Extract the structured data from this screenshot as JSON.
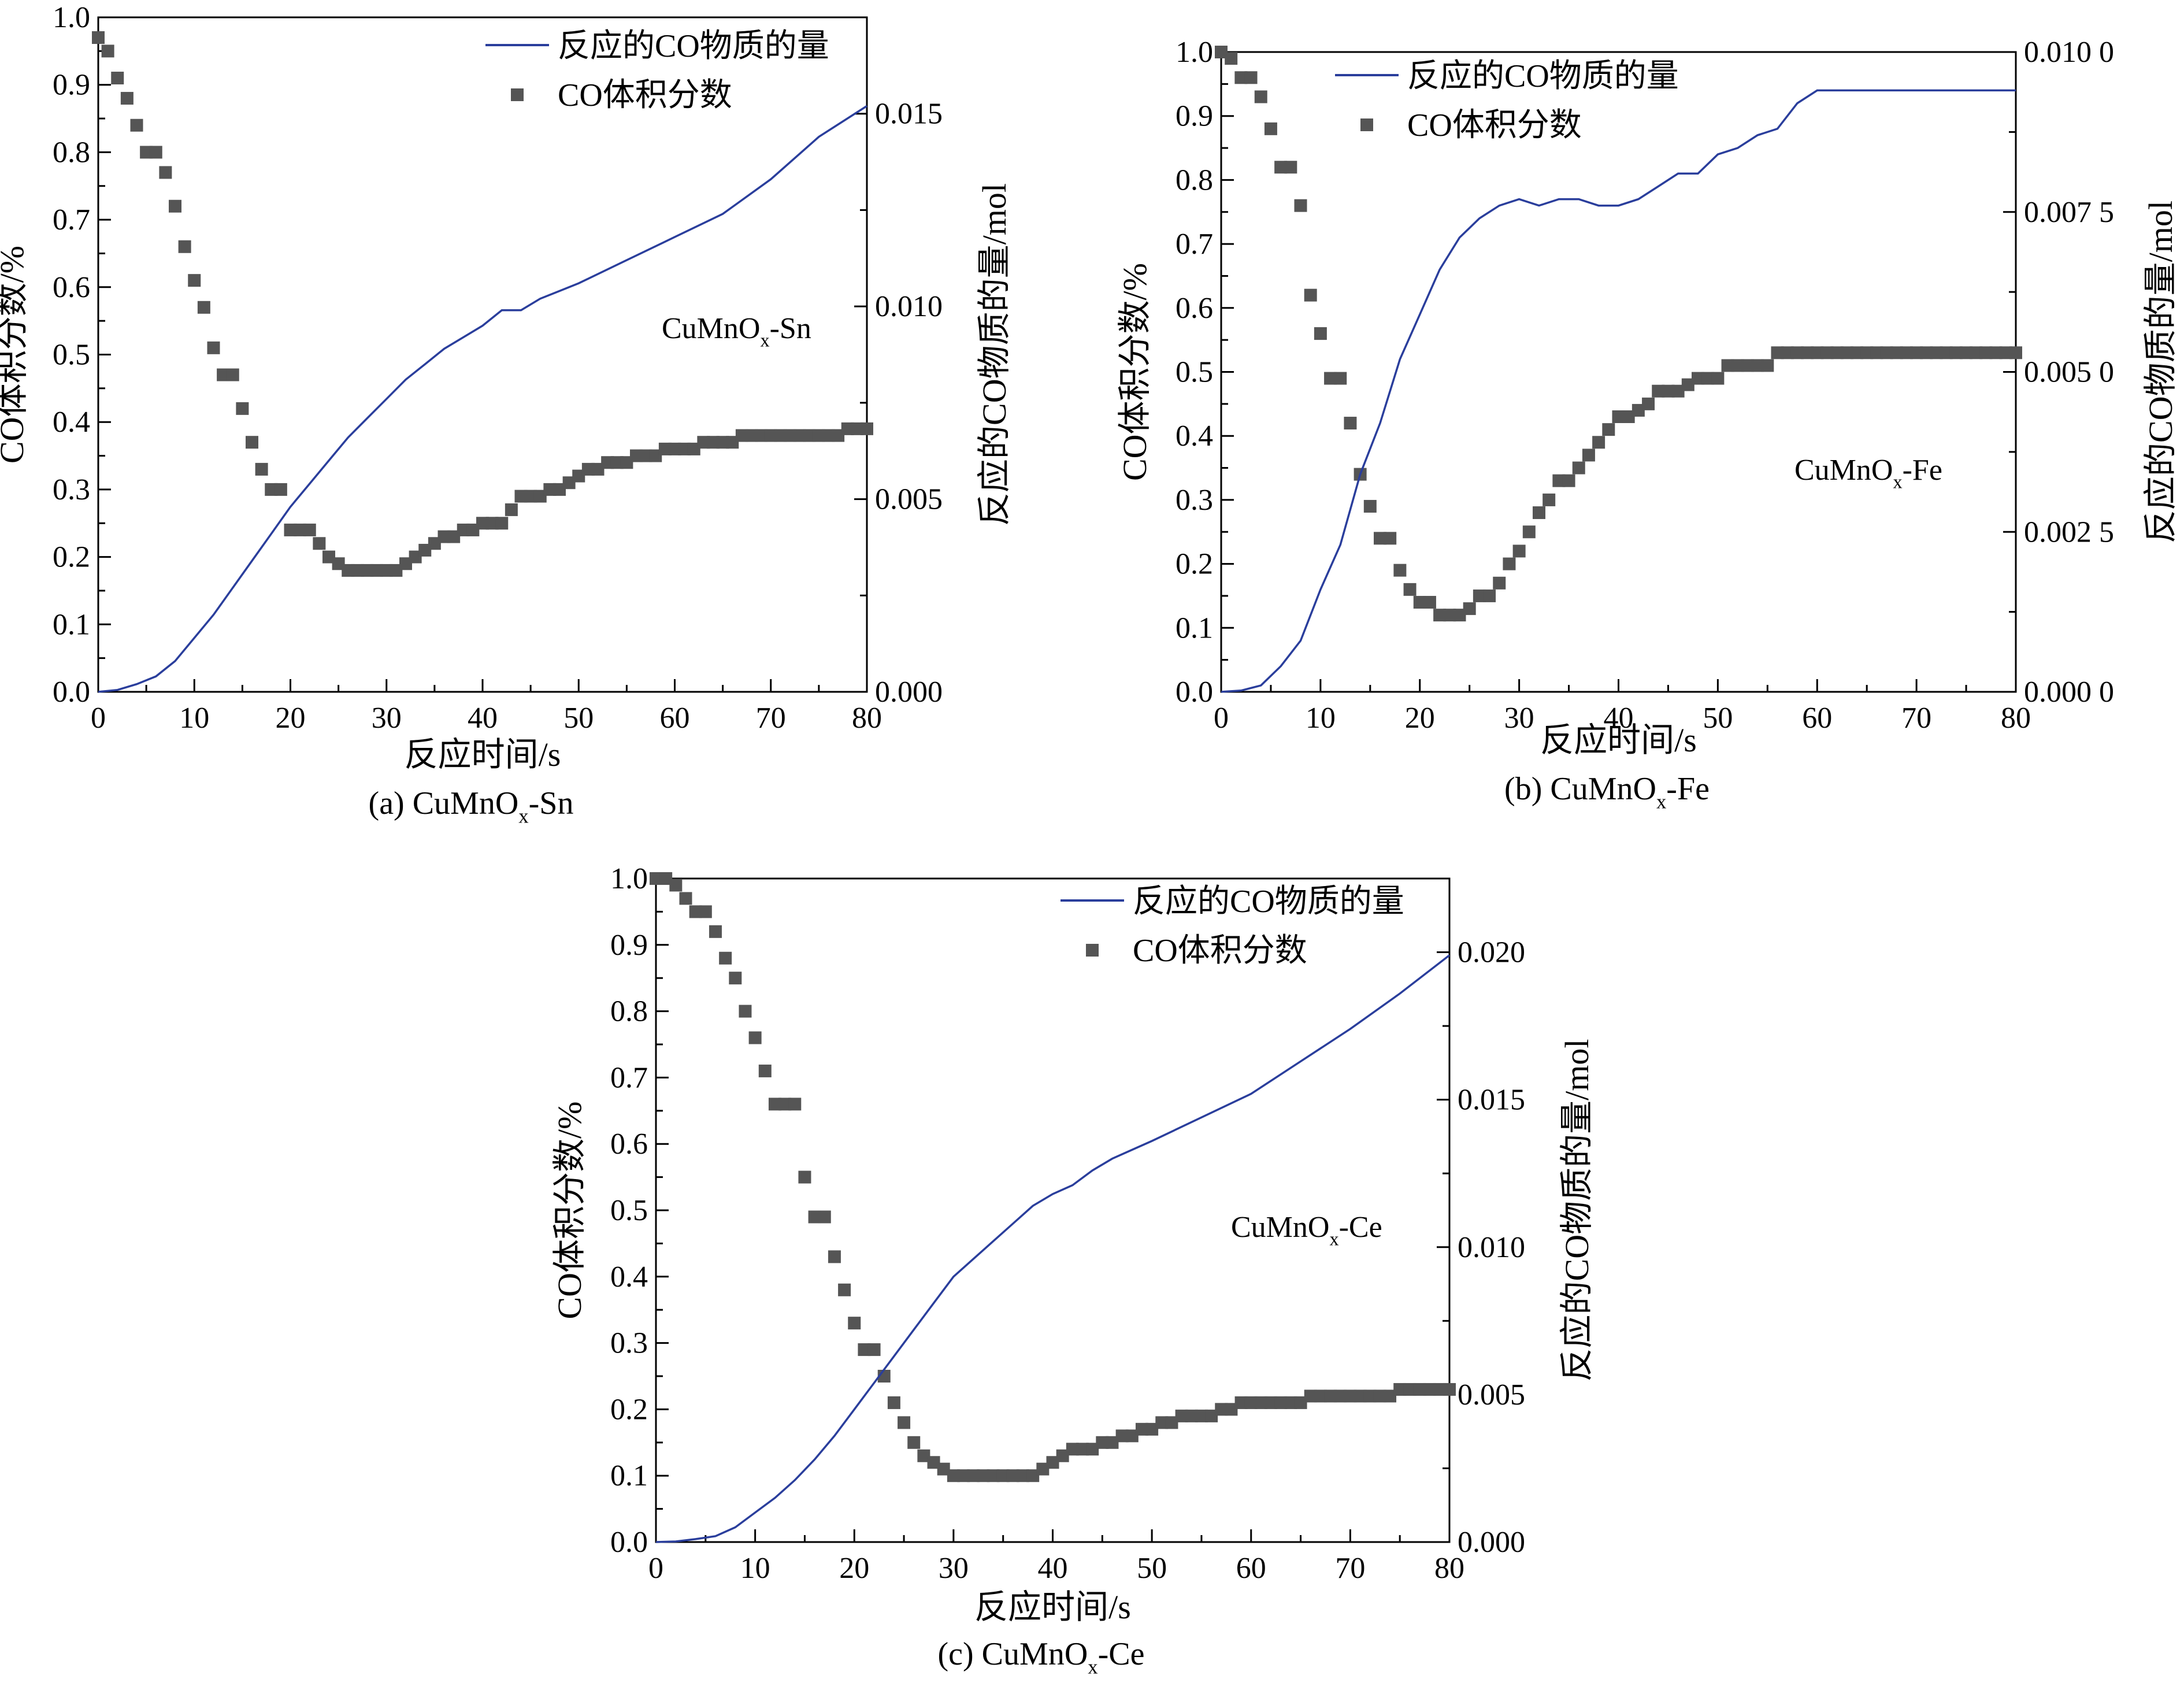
{
  "colors": {
    "line": "#2a3e9c",
    "marker": "#555555",
    "axis": "#000000"
  },
  "legend": {
    "line_label": "反应的CO物质的量",
    "marker_label": "CO体积分数"
  },
  "chart_data": [
    {
      "type": "line+scatter",
      "caption_prefix": "(a) CuMnO",
      "caption_sub": "x",
      "caption_suffix": "-Sn",
      "annotation_prefix": "CuMnO",
      "annotation_sub": "x",
      "annotation_suffix": "-Sn",
      "xlabel": "反应时间/s",
      "ylabel_left": "CO体积分数/%",
      "ylabel_right": "反应的CO物质的量/mol",
      "xlim": [
        0,
        80
      ],
      "ylim_left": [
        0,
        1.0
      ],
      "ylim_right": [
        0,
        0.0175
      ],
      "xticks": [
        0,
        10,
        20,
        30,
        40,
        50,
        60,
        70,
        80
      ],
      "xtick_labels": [
        "0",
        "10",
        "20",
        "30",
        "40",
        "50",
        "60",
        "70",
        "80"
      ],
      "yticks_left": [
        0,
        0.1,
        0.2,
        0.3,
        0.4,
        0.5,
        0.6,
        0.7,
        0.8,
        0.9,
        1.0
      ],
      "ytick_labels_left": [
        "0.0",
        "0.1",
        "0.2",
        "0.3",
        "0.4",
        "0.5",
        "0.6",
        "0.7",
        "0.8",
        "0.9",
        "1.0"
      ],
      "yticks_right": [
        0,
        0.005,
        0.01,
        0.015
      ],
      "ytick_labels_right": [
        "0.000",
        "0.005",
        "0.010",
        "0.015"
      ],
      "line_series": {
        "x": [
          0,
          2,
          4,
          6,
          8,
          10,
          12,
          14,
          16,
          18,
          20,
          22,
          24,
          26,
          28,
          30,
          32,
          34,
          36,
          38,
          40,
          42,
          44,
          46,
          48,
          50,
          55,
          60,
          65,
          70,
          75,
          80
        ],
        "y": [
          0,
          5e-05,
          0.0002,
          0.0004,
          0.0008,
          0.0014,
          0.002,
          0.0027,
          0.0034,
          0.0041,
          0.0048,
          0.0054,
          0.006,
          0.0066,
          0.0071,
          0.0076,
          0.0081,
          0.0085,
          0.0089,
          0.0092,
          0.0095,
          0.0099,
          0.0099,
          0.0102,
          0.0104,
          0.0106,
          0.0112,
          0.0118,
          0.0124,
          0.0133,
          0.0144,
          0.0152
        ]
      },
      "scatter_series": {
        "x": [
          0,
          1,
          2,
          3,
          4,
          5,
          6,
          7,
          8,
          9,
          10,
          11,
          12,
          13,
          14,
          15,
          16,
          17,
          18,
          19,
          20,
          21,
          22,
          23,
          24,
          25,
          26,
          27,
          28,
          29,
          30,
          31,
          32,
          33,
          34,
          35,
          36,
          37,
          38,
          39,
          40,
          41,
          42,
          43,
          44,
          45,
          46,
          47,
          48,
          49,
          50,
          51,
          52,
          53,
          54,
          55,
          56,
          57,
          58,
          59,
          60,
          61,
          62,
          63,
          64,
          65,
          66,
          67,
          68,
          69,
          70,
          71,
          72,
          73,
          74,
          75,
          76,
          77,
          78,
          79,
          80
        ],
        "y": [
          0.97,
          0.95,
          0.91,
          0.88,
          0.84,
          0.8,
          0.8,
          0.77,
          0.72,
          0.66,
          0.61,
          0.57,
          0.51,
          0.47,
          0.47,
          0.42,
          0.37,
          0.33,
          0.3,
          0.3,
          0.24,
          0.24,
          0.24,
          0.22,
          0.2,
          0.19,
          0.18,
          0.18,
          0.18,
          0.18,
          0.18,
          0.18,
          0.19,
          0.2,
          0.21,
          0.22,
          0.23,
          0.23,
          0.24,
          0.24,
          0.25,
          0.25,
          0.25,
          0.27,
          0.29,
          0.29,
          0.29,
          0.3,
          0.3,
          0.31,
          0.32,
          0.33,
          0.33,
          0.34,
          0.34,
          0.34,
          0.35,
          0.35,
          0.35,
          0.36,
          0.36,
          0.36,
          0.36,
          0.37,
          0.37,
          0.37,
          0.37,
          0.38,
          0.38,
          0.38,
          0.38,
          0.38,
          0.38,
          0.38,
          0.38,
          0.38,
          0.38,
          0.38,
          0.39,
          0.39,
          0.39
        ]
      }
    },
    {
      "type": "line+scatter",
      "caption_prefix": "(b) CuMnO",
      "caption_sub": "x",
      "caption_suffix": "-Fe",
      "annotation_prefix": "CuMnO",
      "annotation_sub": "x",
      "annotation_suffix": "-Fe",
      "xlabel": "反应时间/s",
      "ylabel_left": "CO体积分数/%",
      "ylabel_right": "反应的CO物质的量/mol",
      "xlim": [
        0,
        80
      ],
      "ylim_left": [
        0,
        1.0
      ],
      "ylim_right": [
        0,
        0.01
      ],
      "xticks": [
        0,
        10,
        20,
        30,
        40,
        50,
        60,
        70,
        80
      ],
      "xtick_labels": [
        "0",
        "10",
        "20",
        "30",
        "40",
        "50",
        "60",
        "70",
        "80"
      ],
      "yticks_left": [
        0,
        0.1,
        0.2,
        0.3,
        0.4,
        0.5,
        0.6,
        0.7,
        0.8,
        0.9,
        1.0
      ],
      "ytick_labels_left": [
        "0.0",
        "0.1",
        "0.2",
        "0.3",
        "0.4",
        "0.5",
        "0.6",
        "0.7",
        "0.8",
        "0.9",
        "1.0"
      ],
      "yticks_right": [
        0,
        0.0025,
        0.005,
        0.0075,
        0.01
      ],
      "ytick_labels_right": [
        "0.000 0",
        "0.002 5",
        "0.005 0",
        "0.007 5",
        "0.010 0"
      ],
      "line_series": {
        "x": [
          0,
          2,
          4,
          6,
          8,
          10,
          12,
          14,
          16,
          18,
          20,
          22,
          24,
          26,
          28,
          30,
          32,
          34,
          36,
          38,
          40,
          42,
          44,
          46,
          48,
          50,
          52,
          54,
          56,
          58,
          60,
          65,
          70,
          75,
          80
        ],
        "y": [
          0,
          2e-05,
          0.0001,
          0.0004,
          0.0008,
          0.0016,
          0.0023,
          0.0034,
          0.0042,
          0.0052,
          0.0059,
          0.0066,
          0.0071,
          0.0074,
          0.0076,
          0.0077,
          0.0076,
          0.0077,
          0.0077,
          0.0076,
          0.0076,
          0.0077,
          0.0079,
          0.0081,
          0.0081,
          0.0084,
          0.0085,
          0.0087,
          0.0088,
          0.0092,
          0.0094,
          0.0094,
          0.0094,
          0.0094,
          0.0094
        ]
      },
      "scatter_series": {
        "x": [
          0,
          1,
          2,
          3,
          4,
          5,
          6,
          7,
          8,
          9,
          10,
          11,
          12,
          13,
          14,
          15,
          16,
          17,
          18,
          19,
          20,
          21,
          22,
          23,
          24,
          25,
          26,
          27,
          28,
          29,
          30,
          31,
          32,
          33,
          34,
          35,
          36,
          37,
          38,
          39,
          40,
          41,
          42,
          43,
          44,
          45,
          46,
          47,
          48,
          49,
          50,
          51,
          52,
          53,
          54,
          55,
          56,
          57,
          58,
          59,
          60,
          61,
          62,
          63,
          64,
          65,
          66,
          67,
          68,
          69,
          70,
          71,
          72,
          73,
          74,
          75,
          76,
          77,
          78,
          79,
          80
        ],
        "y": [
          1.0,
          0.99,
          0.96,
          0.96,
          0.93,
          0.88,
          0.82,
          0.82,
          0.76,
          0.62,
          0.56,
          0.49,
          0.49,
          0.42,
          0.34,
          0.29,
          0.24,
          0.24,
          0.19,
          0.16,
          0.14,
          0.14,
          0.12,
          0.12,
          0.12,
          0.13,
          0.15,
          0.15,
          0.17,
          0.2,
          0.22,
          0.25,
          0.28,
          0.3,
          0.33,
          0.33,
          0.35,
          0.37,
          0.39,
          0.41,
          0.43,
          0.43,
          0.44,
          0.45,
          0.47,
          0.47,
          0.47,
          0.48,
          0.49,
          0.49,
          0.49,
          0.51,
          0.51,
          0.51,
          0.51,
          0.51,
          0.53,
          0.53,
          0.53,
          0.53,
          0.53,
          0.53,
          0.53,
          0.53,
          0.53,
          0.53,
          0.53,
          0.53,
          0.53,
          0.53,
          0.53,
          0.53,
          0.53,
          0.53,
          0.53,
          0.53,
          0.53,
          0.53,
          0.53,
          0.53,
          0.53
        ]
      }
    },
    {
      "type": "line+scatter",
      "caption_prefix": "(c) CuMnO",
      "caption_sub": "x",
      "caption_suffix": "-Ce",
      "annotation_prefix": "CuMnO",
      "annotation_sub": "x",
      "annotation_suffix": "-Ce",
      "xlabel": "反应时间/s",
      "ylabel_left": "CO体积分数/%",
      "ylabel_right": "反应的CO物质的量/mol",
      "xlim": [
        0,
        80
      ],
      "ylim_left": [
        0,
        1.0
      ],
      "ylim_right": [
        0,
        0.0225
      ],
      "xticks": [
        0,
        10,
        20,
        30,
        40,
        50,
        60,
        70,
        80
      ],
      "xtick_labels": [
        "0",
        "10",
        "20",
        "30",
        "40",
        "50",
        "60",
        "70",
        "80"
      ],
      "yticks_left": [
        0,
        0.1,
        0.2,
        0.3,
        0.4,
        0.5,
        0.6,
        0.7,
        0.8,
        0.9,
        1.0
      ],
      "ytick_labels_left": [
        "0.0",
        "0.1",
        "0.2",
        "0.3",
        "0.4",
        "0.5",
        "0.6",
        "0.7",
        "0.8",
        "0.9",
        "1.0"
      ],
      "yticks_right": [
        0,
        0.005,
        0.01,
        0.015,
        0.02
      ],
      "ytick_labels_right": [
        "0.000",
        "0.005",
        "0.010",
        "0.015",
        "0.020"
      ],
      "line_series": {
        "x": [
          0,
          2,
          4,
          6,
          8,
          10,
          12,
          14,
          16,
          18,
          20,
          22,
          24,
          26,
          28,
          30,
          32,
          34,
          36,
          38,
          40,
          42,
          44,
          46,
          48,
          50,
          55,
          60,
          65,
          70,
          75,
          80
        ],
        "y": [
          0,
          2e-05,
          0.0001,
          0.0002,
          0.0005,
          0.001,
          0.0015,
          0.0021,
          0.0028,
          0.0036,
          0.0045,
          0.0054,
          0.0063,
          0.0072,
          0.0081,
          0.009,
          0.0096,
          0.0102,
          0.0108,
          0.0114,
          0.0118,
          0.0121,
          0.0126,
          0.013,
          0.0133,
          0.0136,
          0.0144,
          0.0152,
          0.0163,
          0.0174,
          0.0186,
          0.0199
        ]
      },
      "scatter_series": {
        "x": [
          0,
          1,
          2,
          3,
          4,
          5,
          6,
          7,
          8,
          9,
          10,
          11,
          12,
          13,
          14,
          15,
          16,
          17,
          18,
          19,
          20,
          21,
          22,
          23,
          24,
          25,
          26,
          27,
          28,
          29,
          30,
          31,
          32,
          33,
          34,
          35,
          36,
          37,
          38,
          39,
          40,
          41,
          42,
          43,
          44,
          45,
          46,
          47,
          48,
          49,
          50,
          51,
          52,
          53,
          54,
          55,
          56,
          57,
          58,
          59,
          60,
          61,
          62,
          63,
          64,
          65,
          66,
          67,
          68,
          69,
          70,
          71,
          72,
          73,
          74,
          75,
          76,
          77,
          78,
          79,
          80
        ],
        "y": [
          1.0,
          1.0,
          0.99,
          0.97,
          0.95,
          0.95,
          0.92,
          0.88,
          0.85,
          0.8,
          0.76,
          0.71,
          0.66,
          0.66,
          0.66,
          0.55,
          0.49,
          0.49,
          0.43,
          0.38,
          0.33,
          0.29,
          0.29,
          0.25,
          0.21,
          0.18,
          0.15,
          0.13,
          0.12,
          0.11,
          0.1,
          0.1,
          0.1,
          0.1,
          0.1,
          0.1,
          0.1,
          0.1,
          0.1,
          0.11,
          0.12,
          0.13,
          0.14,
          0.14,
          0.14,
          0.15,
          0.15,
          0.16,
          0.16,
          0.17,
          0.17,
          0.18,
          0.18,
          0.19,
          0.19,
          0.19,
          0.19,
          0.2,
          0.2,
          0.21,
          0.21,
          0.21,
          0.21,
          0.21,
          0.21,
          0.21,
          0.22,
          0.22,
          0.22,
          0.22,
          0.22,
          0.22,
          0.22,
          0.22,
          0.22,
          0.23,
          0.23,
          0.23,
          0.23,
          0.23,
          0.23
        ]
      }
    }
  ]
}
